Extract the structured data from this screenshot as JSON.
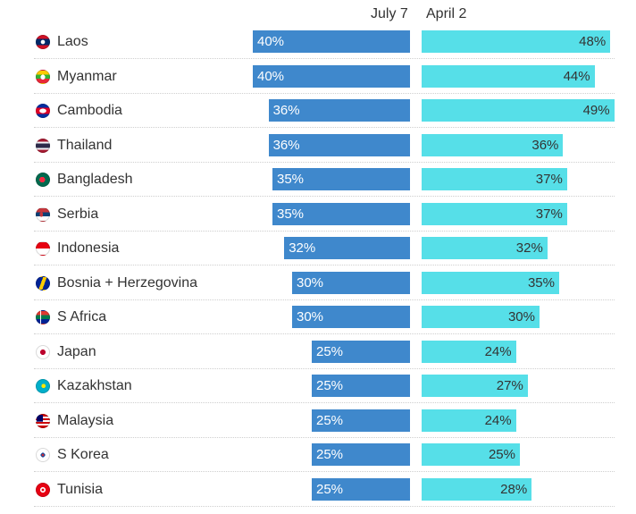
{
  "chart_data": {
    "type": "bar",
    "orientation": "horizontal",
    "value_format": "percent",
    "categories": [
      "Laos",
      "Myanmar",
      "Cambodia",
      "Thailand",
      "Bangladesh",
      "Serbia",
      "Indonesia",
      "Bosnia + Herzegovina",
      "S Africa",
      "Japan",
      "Kazakhstan",
      "Malaysia",
      "S Korea",
      "Tunisia"
    ],
    "series": [
      {
        "name": "July 7",
        "color": "#3f88cc",
        "values": [
          40,
          40,
          36,
          36,
          35,
          35,
          32,
          30,
          30,
          25,
          25,
          25,
          25,
          25
        ]
      },
      {
        "name": "April 2",
        "color": "#56dfe8",
        "values": [
          48,
          44,
          49,
          36,
          37,
          37,
          32,
          35,
          30,
          24,
          27,
          24,
          25,
          28
        ]
      }
    ],
    "title": "",
    "xlabel": "",
    "ylabel": "",
    "xlim": [
      0,
      50
    ],
    "grid": false,
    "legend": "top-center"
  },
  "flags": [
    "laos-flag-icon",
    "myanmar-flag-icon",
    "cambodia-flag-icon",
    "thailand-flag-icon",
    "bangladesh-flag-icon",
    "serbia-flag-icon",
    "indonesia-flag-icon",
    "bosnia-flag-icon",
    "south-africa-flag-icon",
    "japan-flag-icon",
    "kazakhstan-flag-icon",
    "malaysia-flag-icon",
    "south-korea-flag-icon",
    "tunisia-flag-icon"
  ]
}
